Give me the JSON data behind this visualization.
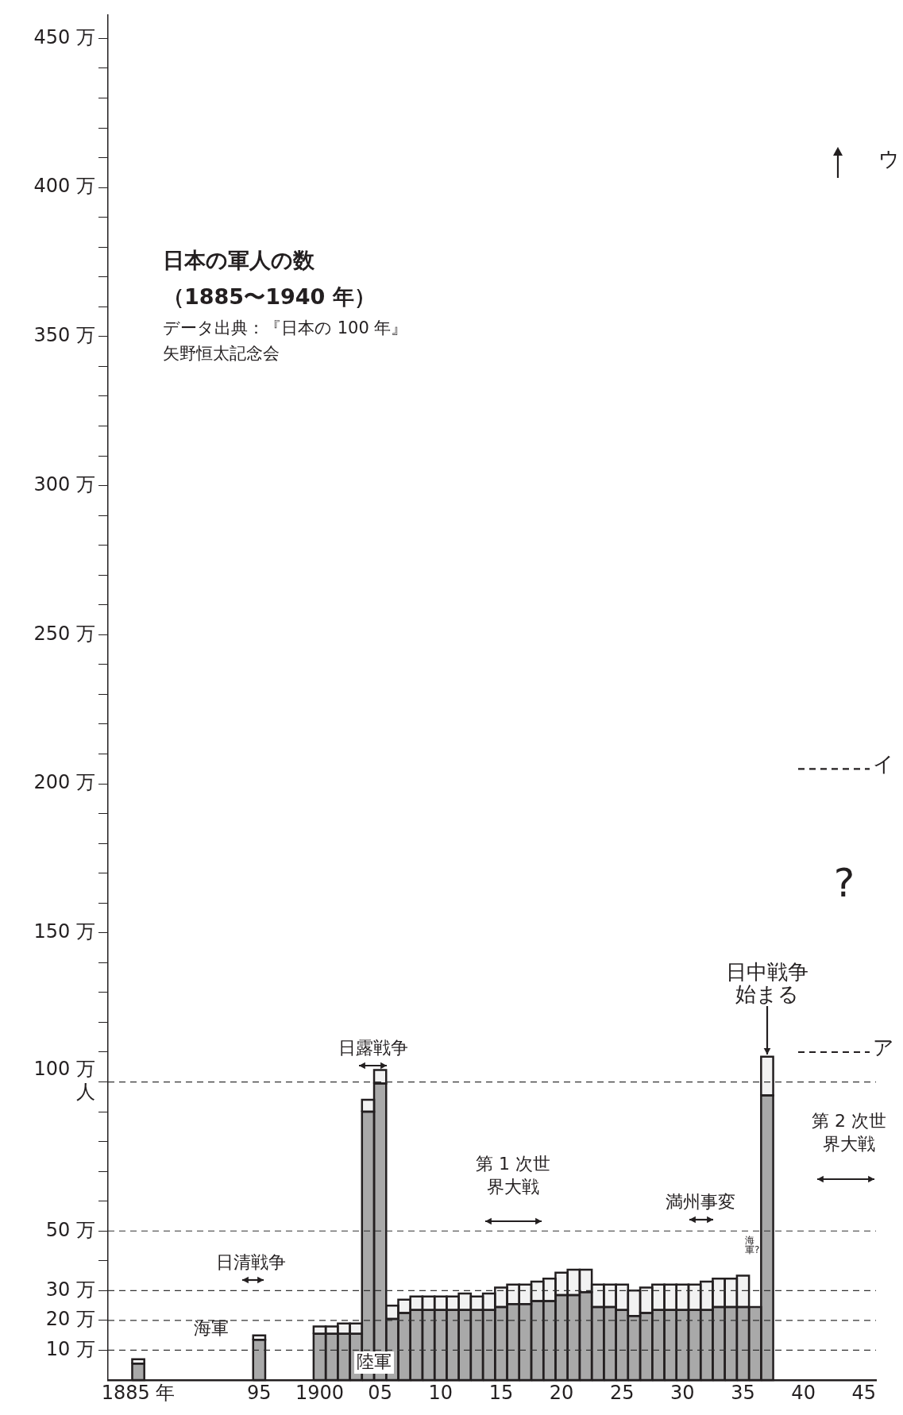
{
  "chart_data": {
    "type": "bar",
    "stacked": true,
    "title": "日本の軍人の数",
    "subtitle": "（1885〜1940 年）",
    "x": [
      1885,
      1895,
      1900,
      1901,
      1902,
      1903,
      1904,
      1905,
      1906,
      1907,
      1908,
      1909,
      1910,
      1911,
      1912,
      1913,
      1914,
      1915,
      1916,
      1917,
      1918,
      1919,
      1920,
      1921,
      1922,
      1923,
      1924,
      1925,
      1926,
      1927,
      1928,
      1929,
      1930,
      1931,
      1932,
      1933,
      1934,
      1935,
      1936,
      1937
    ],
    "series": [
      {
        "name": "陸軍",
        "color": "#a9a9a9",
        "values": [
          5.5,
          13.5,
          15.5,
          15.5,
          15.5,
          15.5,
          90,
          99.5,
          20.5,
          22.5,
          23.5,
          23.5,
          23.5,
          23.5,
          23.5,
          23.5,
          23.5,
          24.5,
          25.5,
          25.5,
          26.5,
          26.5,
          28.5,
          28.5,
          29.5,
          24.5,
          24.5,
          23.5,
          21.5,
          22.5,
          23.5,
          23.5,
          23.5,
          23.5,
          23.5,
          24.5,
          24.5,
          24.5,
          24.5,
          95.5
        ]
      },
      {
        "name": "海軍",
        "color": "#f2f2f2",
        "values": [
          1.5,
          1.5,
          2.5,
          2.5,
          3.5,
          3.5,
          4,
          4.5,
          4.5,
          4.5,
          4.5,
          4.5,
          4.5,
          4.5,
          5.5,
          4.5,
          5.5,
          6.5,
          6.5,
          6.5,
          6.5,
          7.5,
          7.5,
          8.5,
          7.5,
          7.5,
          7.5,
          8.5,
          8.5,
          8.5,
          8.5,
          8.5,
          8.5,
          8.5,
          9.5,
          9.5,
          9.5,
          10.5,
          null,
          13
        ]
      }
    ],
    "xlim": [
      1882.5,
      1946
    ],
    "xticks": [
      {
        "value": 1885,
        "label": "1885 年"
      },
      {
        "value": 1895,
        "label": "95"
      },
      1900,
      {
        "value": 1905,
        "label": "05"
      },
      {
        "value": 1910,
        "label": "10"
      },
      {
        "value": 1915,
        "label": "15"
      },
      {
        "value": 1920,
        "label": "20"
      },
      {
        "value": 1925,
        "label": "25"
      },
      {
        "value": 1930,
        "label": "30"
      },
      {
        "value": 1935,
        "label": "35"
      },
      {
        "value": 1940,
        "label": "40"
      },
      {
        "value": 1945,
        "label": "45"
      }
    ],
    "ylim": [
      0,
      458
    ],
    "yticks": [
      {
        "value": 10,
        "label": "10 万"
      },
      {
        "value": 20,
        "label": "20 万"
      },
      {
        "value": 30,
        "label": "30 万"
      },
      {
        "value": 40,
        "label": null
      },
      {
        "value": 50,
        "label": "50 万"
      },
      {
        "value": 60,
        "label": null
      },
      {
        "value": 70,
        "label": null
      },
      {
        "value": 80,
        "label": null
      },
      {
        "value": 90,
        "label": null
      },
      {
        "value": 100,
        "label": "100 万人"
      },
      {
        "value": 110,
        "label": null
      },
      {
        "value": 120,
        "label": null
      },
      {
        "value": 130,
        "label": null
      },
      {
        "value": 140,
        "label": null
      },
      {
        "value": 150,
        "label": "150 万"
      },
      {
        "value": 160,
        "label": null
      },
      {
        "value": 170,
        "label": null
      },
      {
        "value": 180,
        "label": null
      },
      {
        "value": 190,
        "label": null
      },
      {
        "value": 200,
        "label": "200 万"
      },
      {
        "value": 210,
        "label": null
      },
      {
        "value": 220,
        "label": null
      },
      {
        "value": 230,
        "label": null
      },
      {
        "value": 240,
        "label": null
      },
      {
        "value": 250,
        "label": "250 万"
      },
      {
        "value": 260,
        "label": null
      },
      {
        "value": 270,
        "label": null
      },
      {
        "value": 280,
        "label": null
      },
      {
        "value": 290,
        "label": null
      },
      {
        "value": 300,
        "label": "300 万"
      },
      {
        "value": 310,
        "label": null
      },
      {
        "value": 320,
        "label": null
      },
      {
        "value": 330,
        "label": null
      },
      {
        "value": 340,
        "label": null
      },
      {
        "value": 350,
        "label": "350 万"
      },
      {
        "value": 360,
        "label": null
      },
      {
        "value": 370,
        "label": null
      },
      {
        "value": 380,
        "label": null
      },
      {
        "value": 390,
        "label": null
      },
      {
        "value": 400,
        "label": "400 万"
      },
      {
        "value": 410,
        "label": null
      },
      {
        "value": 420,
        "label": null
      },
      {
        "value": 430,
        "label": null
      },
      {
        "value": 440,
        "label": null
      },
      {
        "value": 450,
        "label": "450 万"
      }
    ],
    "ref_lines": [
      {
        "axis": "y",
        "value": 10,
        "line_style": "dashed",
        "color": "#333333"
      },
      {
        "axis": "y",
        "value": 20,
        "line_style": "dashed",
        "color": "#333333"
      },
      {
        "axis": "y",
        "value": 30,
        "line_style": "dashed",
        "color": "#333333"
      },
      {
        "axis": "y",
        "value": 50,
        "line_style": "dashed",
        "color": "#333333"
      },
      {
        "axis": "y",
        "value": 100,
        "line_style": "dashed",
        "color": "#333333"
      },
      {
        "axis": "y",
        "value": 110,
        "label": "ア",
        "line_style": "dashed",
        "color": "#231f20"
      },
      {
        "axis": "y",
        "value": 205,
        "label": "イ",
        "line_style": "dashed",
        "color": "#231f20"
      }
    ],
    "annotations": [
      "データ出典：『日本の 100 年』",
      "矢野恒太記念会",
      "日清戦争",
      "日露戦争",
      "第 1 次世界大戦",
      "満州事変",
      "第 2 次世界大戦",
      {
        "text": "日中戦争始まる",
        "x": 1937,
        "y": 108.5
      },
      "海軍?",
      "?",
      "ウ"
    ],
    "grid": false,
    "legend": false
  }
}
